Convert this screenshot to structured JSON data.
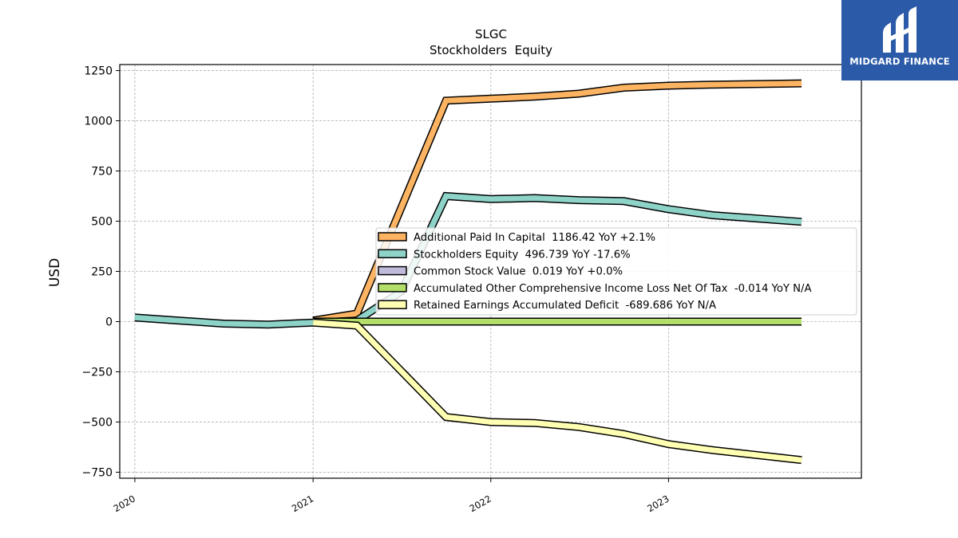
{
  "logo": {
    "text": "MIDGARD FINANCE"
  },
  "colors": {
    "apic": "#fdb462",
    "equity": "#8dd3c7",
    "common": "#bebada",
    "aoci": "#b3de69",
    "retained": "#ffffb3"
  },
  "chart_data": {
    "type": "line",
    "title": "SLGC",
    "subtitle": "Stockholders  Equity",
    "ylabel": "USD",
    "ylim": [
      -780,
      1280
    ],
    "xlim": [
      "2019-12-01",
      "2024-02-01"
    ],
    "yticks": [
      1250,
      1000,
      750,
      500,
      250,
      0,
      -250,
      -500,
      -750
    ],
    "ytick_labels": [
      "1250",
      "1000",
      "750",
      "500",
      "250",
      "0",
      "−250",
      "−500",
      "−750"
    ],
    "xticks": [
      "2020-01-01",
      "2021-01-01",
      "2022-01-01",
      "2023-01-01"
    ],
    "xtick_labels": [
      "2020",
      "2021",
      "2022",
      "2023"
    ],
    "grid": true,
    "legend_position": "center-right",
    "series": [
      {
        "name": "Additional Paid In Capital",
        "legend": "Additional Paid In Capital  1186.42 YoY +2.1%",
        "color": "#fdb462",
        "x": [
          "2021-01-01",
          "2021-04-01",
          "2021-10-01",
          "2022-01-01",
          "2022-04-01",
          "2022-07-01",
          "2022-10-01",
          "2023-01-01",
          "2023-04-01",
          "2023-10-01"
        ],
        "values": [
          5,
          40,
          1100,
          1110,
          1120,
          1135,
          1165,
          1175,
          1180,
          1186.42
        ]
      },
      {
        "name": "Stockholders Equity",
        "legend": "Stockholders Equity  496.739 YoY -17.6%",
        "color": "#8dd3c7",
        "x": [
          "2020-01-01",
          "2020-04-01",
          "2020-07-01",
          "2020-10-01",
          "2021-01-01",
          "2021-04-01",
          "2021-07-01",
          "2021-10-01",
          "2022-01-01",
          "2022-04-01",
          "2022-07-01",
          "2022-10-01",
          "2023-01-01",
          "2023-04-01",
          "2023-10-01"
        ],
        "values": [
          20,
          5,
          -10,
          -15,
          -5,
          5,
          150,
          625,
          610,
          615,
          605,
          600,
          560,
          530,
          496.739
        ]
      },
      {
        "name": "Common Stock Value",
        "legend": "Common Stock Value  0.019 YoY +0.0%",
        "color": "#bebada",
        "x": [
          "2021-01-01",
          "2023-10-01"
        ],
        "values": [
          0.019,
          0.019
        ]
      },
      {
        "name": "Accumulated Other Comprehensive Income Loss Net Of Tax",
        "legend": "Accumulated Other Comprehensive Income Loss Net Of Tax  -0.014 YoY N/A",
        "color": "#b3de69",
        "x": [
          "2021-01-01",
          "2023-10-01"
        ],
        "values": [
          -0.014,
          -0.014
        ]
      },
      {
        "name": "Retained Earnings Accumulated Deficit",
        "legend": "Retained Earnings Accumulated Deficit  -689.686 YoY N/A",
        "color": "#ffffb3",
        "x": [
          "2021-01-01",
          "2021-04-01",
          "2021-10-01",
          "2022-01-01",
          "2022-04-01",
          "2022-07-01",
          "2022-10-01",
          "2023-01-01",
          "2023-04-01",
          "2023-10-01"
        ],
        "values": [
          -5,
          -20,
          -475,
          -500,
          -505,
          -525,
          -560,
          -610,
          -640,
          -689.686
        ]
      }
    ]
  }
}
